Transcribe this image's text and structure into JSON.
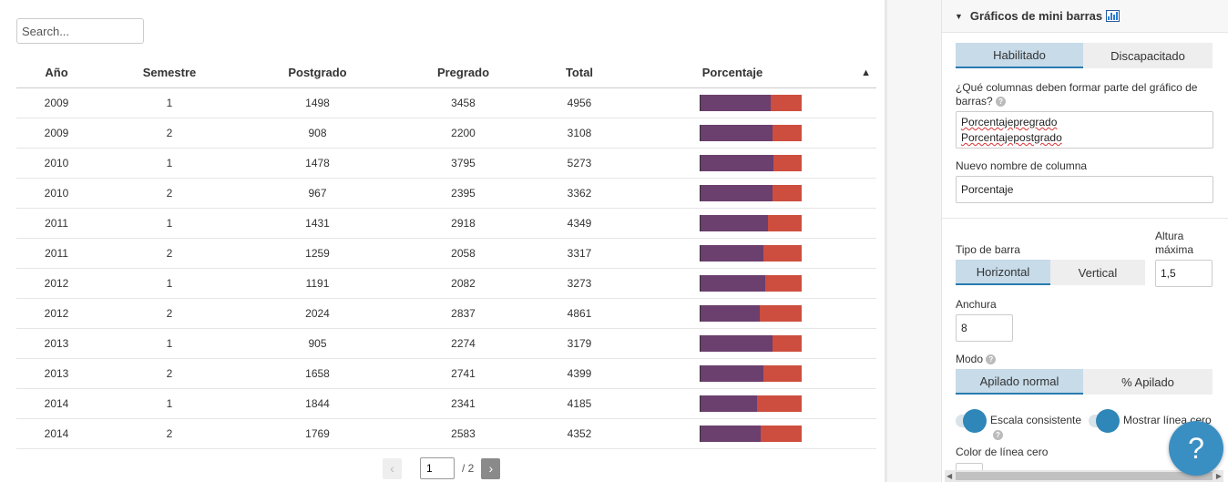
{
  "table": {
    "search_placeholder": "Search...",
    "columns": [
      "Año",
      "Semestre",
      "Postgrado",
      "Pregrado",
      "Total",
      "Porcentaje"
    ],
    "sort_indicator": "▲",
    "rows": [
      {
        "anio": "2009",
        "semestre": "1",
        "postgrado": "1498",
        "pregrado": "3458",
        "total": "4956"
      },
      {
        "anio": "2009",
        "semestre": "2",
        "postgrado": "908",
        "pregrado": "2200",
        "total": "3108"
      },
      {
        "anio": "2010",
        "semestre": "1",
        "postgrado": "1478",
        "pregrado": "3795",
        "total": "5273"
      },
      {
        "anio": "2010",
        "semestre": "2",
        "postgrado": "967",
        "pregrado": "2395",
        "total": "3362"
      },
      {
        "anio": "2011",
        "semestre": "1",
        "postgrado": "1431",
        "pregrado": "2918",
        "total": "4349"
      },
      {
        "anio": "2011",
        "semestre": "2",
        "postgrado": "1259",
        "pregrado": "2058",
        "total": "3317"
      },
      {
        "anio": "2012",
        "semestre": "1",
        "postgrado": "1191",
        "pregrado": "2082",
        "total": "3273"
      },
      {
        "anio": "2012",
        "semestre": "2",
        "postgrado": "2024",
        "pregrado": "2837",
        "total": "4861"
      },
      {
        "anio": "2013",
        "semestre": "1",
        "postgrado": "905",
        "pregrado": "2274",
        "total": "3179"
      },
      {
        "anio": "2013",
        "semestre": "2",
        "postgrado": "1658",
        "pregrado": "2741",
        "total": "4399"
      },
      {
        "anio": "2014",
        "semestre": "1",
        "postgrado": "1844",
        "pregrado": "2341",
        "total": "4185"
      },
      {
        "anio": "2014",
        "semestre": "2",
        "postgrado": "1769",
        "pregrado": "2583",
        "total": "4352"
      }
    ],
    "bar_colors": {
      "pregrado": "#6b3f6e",
      "postgrado": "#cd4e3e"
    }
  },
  "pager": {
    "prev": "‹",
    "next": "›",
    "page": "1",
    "total": "/ 2"
  },
  "panel": {
    "title": "Gráficos de mini barras",
    "enabled_label": "Habilitado",
    "disabled_label": "Discapacitado",
    "columns_question": "¿Qué columnas deben formar parte del gráfico de barras?",
    "columns_values": [
      "Porcentajepregrado",
      "Porcentajepostgrado"
    ],
    "new_name_label": "Nuevo nombre de columna",
    "new_name_value": "Porcentaje",
    "bar_type_label": "Tipo de barra",
    "horizontal_label": "Horizontal",
    "vertical_label": "Vertical",
    "max_height_label": "Altura máxima",
    "max_height_value": "1,5",
    "width_label": "Anchura",
    "width_value": "8",
    "mode_label": "Modo",
    "stack_normal_label": "Apilado normal",
    "stack_percent_label": "% Apilado",
    "consistent_scale_label": "Escala consistente",
    "zero_line_label": "Mostrar línea cero",
    "zero_line_color_label": "Color de línea cero",
    "help_glyph": "?",
    "accent": "#2f86b8"
  },
  "fab": {
    "label": "?"
  }
}
